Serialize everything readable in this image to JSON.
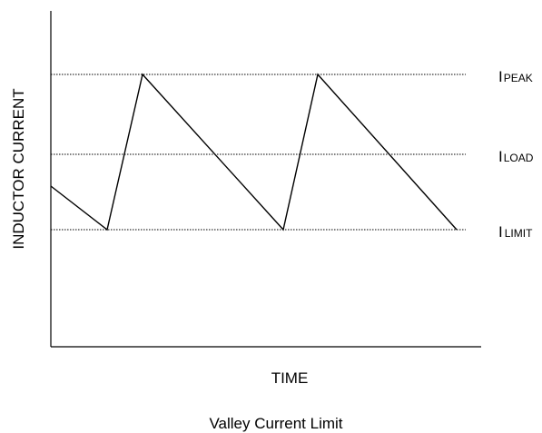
{
  "diagram": {
    "caption": "Valley Current Limit",
    "x_axis_label": "TIME",
    "y_axis_label": "INDUCTOR CURRENT",
    "levels": [
      {
        "id": "peak",
        "main": "I",
        "sub": "PEAK"
      },
      {
        "id": "load",
        "main": "I",
        "sub": "LOAD"
      },
      {
        "id": "limit",
        "main": "I",
        "sub": "LIMIT"
      }
    ]
  },
  "colors": {
    "line": "#000000",
    "background": "#ffffff"
  }
}
